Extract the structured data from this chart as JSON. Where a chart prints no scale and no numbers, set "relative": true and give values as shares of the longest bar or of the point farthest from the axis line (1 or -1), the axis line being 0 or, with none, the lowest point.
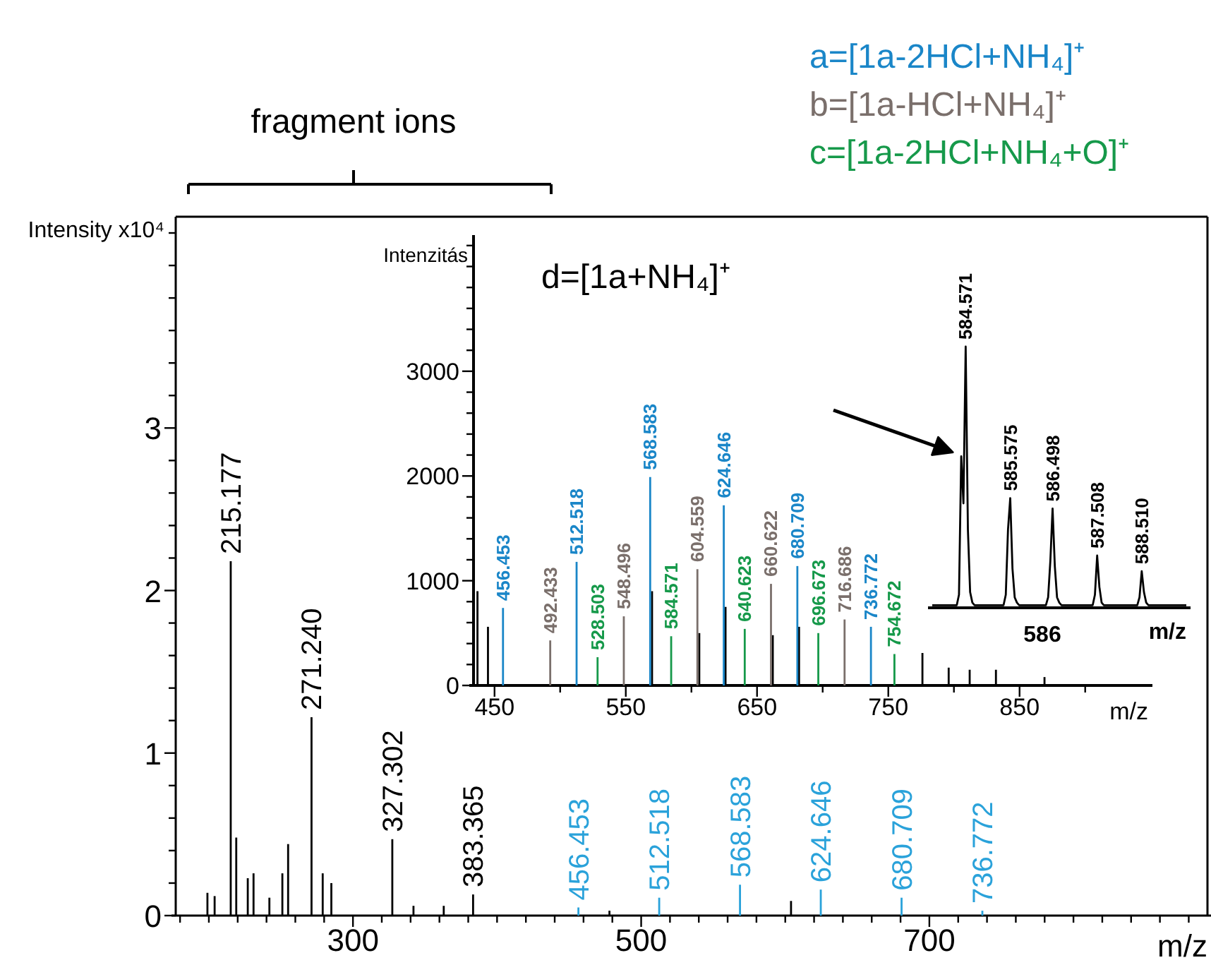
{
  "chart_data": [
    {
      "type": "bar",
      "xlabel": "m/z",
      "ylabel": "Intensity x10⁴",
      "annotations": [
        "fragment ions",
        {
          "text": "215.177",
          "x": 215.177,
          "y": 2.18
        },
        {
          "text": "271.240",
          "x": 271.24,
          "y": 1.22
        },
        {
          "text": "327.302",
          "x": 327.302,
          "y": 0.47
        },
        {
          "text": "383.365",
          "x": 383.365,
          "y": 0.13
        },
        {
          "text": "456.453",
          "x": 456.453,
          "y": 0.05
        },
        {
          "text": "512.518",
          "x": 512.518,
          "y": 0.11
        },
        {
          "text": "568.583",
          "x": 568.583,
          "y": 0.19
        },
        {
          "text": "624.646",
          "x": 624.646,
          "y": 0.16
        },
        {
          "text": "680.709",
          "x": 680.709,
          "y": 0.11
        },
        {
          "text": "736.772",
          "x": 736.772,
          "y": 0.03
        }
      ],
      "xlim": [
        177,
        893
      ],
      "ylim": [
        0,
        4.3
      ],
      "xticks": [
        {
          "value": 180,
          "label": null
        },
        {
          "value": 200,
          "label": null
        },
        {
          "value": 220,
          "label": null
        },
        {
          "value": 240,
          "label": null
        },
        {
          "value": 260,
          "label": null
        },
        {
          "value": 280,
          "label": null
        },
        300,
        {
          "value": 320,
          "label": null
        },
        {
          "value": 340,
          "label": null
        },
        {
          "value": 360,
          "label": null
        },
        {
          "value": 380,
          "label": null
        },
        {
          "value": 400,
          "label": null
        },
        {
          "value": 420,
          "label": null
        },
        {
          "value": 440,
          "label": null
        },
        {
          "value": 460,
          "label": null
        },
        {
          "value": 480,
          "label": null
        },
        500,
        {
          "value": 520,
          "label": null
        },
        {
          "value": 540,
          "label": null
        },
        {
          "value": 560,
          "label": null
        },
        {
          "value": 580,
          "label": null
        },
        {
          "value": 600,
          "label": null
        },
        {
          "value": 620,
          "label": null
        },
        {
          "value": 640,
          "label": null
        },
        {
          "value": 660,
          "label": null
        },
        {
          "value": 680,
          "label": null
        },
        700,
        {
          "value": 720,
          "label": null
        },
        {
          "value": 740,
          "label": null
        },
        {
          "value": 760,
          "label": null
        },
        {
          "value": 780,
          "label": null
        },
        {
          "value": 800,
          "label": null
        },
        {
          "value": 820,
          "label": null
        },
        {
          "value": 840,
          "label": null
        },
        {
          "value": 860,
          "label": null
        },
        {
          "value": 880,
          "label": null
        }
      ],
      "yticks": [
        0,
        {
          "value": 0.2,
          "label": null
        },
        {
          "value": 0.4,
          "label": null
        },
        {
          "value": 0.6,
          "label": null
        },
        {
          "value": 0.8,
          "label": null
        },
        1,
        {
          "value": 1.2,
          "label": null
        },
        {
          "value": 1.4,
          "label": null
        },
        {
          "value": 1.6,
          "label": null
        },
        {
          "value": 1.8,
          "label": null
        },
        2,
        {
          "value": 2.2,
          "label": null
        },
        {
          "value": 2.4,
          "label": null
        },
        {
          "value": 2.6,
          "label": null
        },
        {
          "value": 2.8,
          "label": null
        },
        3,
        {
          "value": 3.2,
          "label": null
        },
        {
          "value": 3.4,
          "label": null
        },
        {
          "value": 3.6,
          "label": null
        },
        {
          "value": 3.8,
          "label": null
        },
        {
          "value": 4.0,
          "label": null
        },
        {
          "value": 4.2,
          "label": null
        }
      ],
      "series": [
        {
          "color": "#000000",
          "x": [
            199,
            204,
            219,
            227,
            231,
            242,
            251,
            255,
            279,
            285,
            342,
            363,
            478,
            604
          ],
          "values": [
            0.14,
            0.12,
            0.48,
            0.23,
            0.26,
            0.11,
            0.26,
            0.44,
            0.26,
            0.2,
            0.06,
            0.06,
            0.03,
            0.09
          ]
        },
        {
          "color": "#000000",
          "x": [
            215.177,
            271.24,
            327.302,
            383.365
          ],
          "values": [
            2.18,
            1.22,
            0.47,
            0.13
          ]
        },
        {
          "color": "#2aa2da",
          "x": [
            456.453,
            512.518,
            568.583,
            624.646,
            680.709,
            736.772
          ],
          "values": [
            0.05,
            0.11,
            0.19,
            0.16,
            0.11,
            0.03
          ]
        }
      ]
    },
    {
      "type": "bar",
      "xlabel": "m/z",
      "ylabel": "Intenzitás",
      "legend": "top right",
      "annotations": [
        "d=[1a+NH₄]⁺",
        {
          "text": "456.453",
          "x": 456.453,
          "y": 740
        },
        {
          "text": "512.518",
          "x": 512.518,
          "y": 1180
        },
        {
          "text": "568.583",
          "x": 568.583,
          "y": 1990
        },
        {
          "text": "624.646",
          "x": 624.646,
          "y": 1720
        },
        {
          "text": "680.709",
          "x": 680.709,
          "y": 1140
        },
        {
          "text": "736.772",
          "x": 736.772,
          "y": 560
        },
        {
          "text": "492.433",
          "x": 492.433,
          "y": 430
        },
        {
          "text": "548.496",
          "x": 548.496,
          "y": 660
        },
        {
          "text": "604.559",
          "x": 604.559,
          "y": 1110
        },
        {
          "text": "660.622",
          "x": 660.622,
          "y": 970
        },
        {
          "text": "716.686",
          "x": 716.686,
          "y": 630
        },
        {
          "text": "528.503",
          "x": 528.503,
          "y": 270
        },
        {
          "text": "584.571",
          "x": 584.571,
          "y": 470
        },
        {
          "text": "640.623",
          "x": 640.623,
          "y": 540
        },
        {
          "text": "696.673",
          "x": 696.673,
          "y": 500
        },
        {
          "text": "754.672",
          "x": 754.672,
          "y": 300
        }
      ],
      "xlim": [
        434,
        948
      ],
      "ylim": [
        0,
        4300
      ],
      "xticks": [
        450,
        {
          "value": 500,
          "label": null
        },
        550,
        {
          "value": 600,
          "label": null
        },
        650,
        {
          "value": 700,
          "label": null
        },
        750,
        {
          "value": 800,
          "label": null
        },
        850,
        {
          "value": 900,
          "label": null
        }
      ],
      "yticks": [
        0,
        {
          "value": 200,
          "label": null
        },
        {
          "value": 400,
          "label": null
        },
        {
          "value": 600,
          "label": null
        },
        {
          "value": 800,
          "label": null
        },
        1000,
        {
          "value": 1200,
          "label": null
        },
        {
          "value": 1400,
          "label": null
        },
        {
          "value": 1600,
          "label": null
        },
        {
          "value": 1800,
          "label": null
        },
        2000,
        {
          "value": 2200,
          "label": null
        },
        {
          "value": 2400,
          "label": null
        },
        {
          "value": 2600,
          "label": null
        },
        {
          "value": 2800,
          "label": null
        },
        3000,
        {
          "value": 3200,
          "label": null
        },
        {
          "value": 3400,
          "label": null
        },
        {
          "value": 3600,
          "label": null
        },
        {
          "value": 3800,
          "label": null
        },
        {
          "value": 4000,
          "label": null
        },
        {
          "value": 4200,
          "label": null
        }
      ],
      "series": [
        {
          "color": "#000000",
          "x": [
            437,
            445,
            570,
            606,
            626,
            662,
            682,
            776,
            796,
            812,
            832,
            869
          ],
          "values": [
            900,
            560,
            900,
            500,
            750,
            480,
            560,
            310,
            170,
            150,
            150,
            80
          ]
        },
        {
          "name": "a=[1a-2HCl+NH₄]⁺",
          "color": "#1a86c8",
          "x": [
            456.453,
            512.518,
            568.583,
            624.646,
            680.709,
            736.772
          ],
          "values": [
            740,
            1180,
            1990,
            1720,
            1140,
            560
          ]
        },
        {
          "name": "b=[1a-HCl+NH₄]⁺",
          "color": "#7a6f6b",
          "x": [
            492.433,
            548.496,
            604.559,
            660.622,
            716.686
          ],
          "values": [
            430,
            660,
            1110,
            970,
            630
          ]
        },
        {
          "name": "c=[1a-2HCl+NH₄+O]⁺",
          "color": "#16994a",
          "x": [
            528.503,
            584.571,
            640.623,
            696.673,
            754.672
          ],
          "values": [
            270,
            470,
            540,
            500,
            300
          ]
        }
      ]
    },
    {
      "type": "line",
      "relative": true,
      "xlabel": "m/z",
      "categories": [
        null,
        null,
        null,
        null,
        null,
        null,
        null,
        null,
        null,
        null,
        null,
        null,
        null,
        null,
        null,
        null,
        null,
        null,
        null,
        null,
        null,
        null,
        null,
        null,
        null,
        null,
        null,
        null,
        null,
        null,
        null,
        null,
        null,
        null,
        null,
        null,
        null,
        null,
        null,
        null,
        null,
        null,
        null,
        null,
        null,
        null,
        null,
        null,
        null,
        null,
        null,
        null,
        null,
        null,
        null,
        null,
        null,
        null,
        null,
        null,
        null,
        null,
        null,
        null,
        null,
        null,
        null,
        null,
        null,
        null,
        null,
        null,
        null,
        null,
        null,
        null,
        null,
        null,
        null,
        null,
        null,
        null,
        null,
        null,
        null,
        null,
        null,
        null,
        null,
        null,
        null,
        null,
        null,
        null,
        null,
        null,
        null,
        null,
        null,
        null,
        null,
        null,
        null,
        null,
        null,
        null,
        null,
        null,
        null,
        null,
        null,
        null,
        null,
        null,
        null
      ],
      "annotations": [
        "586",
        {
          "text": "584.571",
          "y": 1.0
        },
        {
          "text": "585.575",
          "y": 0.42
        },
        {
          "text": "586.498",
          "y": 0.38
        },
        {
          "text": "587.508",
          "y": 0.2
        },
        {
          "text": "588.510",
          "y": 0.14
        }
      ],
      "series": [
        {
          "color": "#000000",
          "values": [
            0.01,
            0.01,
            0.01,
            0.01,
            0.01,
            0.01,
            0.01,
            0.01,
            0.01,
            0.01,
            0.01,
            0.01,
            0.05,
            0.58,
            0.4,
            1.0,
            0.3,
            0.06,
            0.02,
            0.01,
            0.01,
            0.01,
            0.01,
            0.01,
            0.01,
            0.01,
            0.01,
            0.01,
            0.01,
            0.01,
            0.01,
            0.01,
            0.01,
            0.05,
            0.3,
            0.42,
            0.15,
            0.04,
            0.02,
            0.01,
            0.01,
            0.01,
            0.01,
            0.01,
            0.01,
            0.01,
            0.01,
            0.01,
            0.01,
            0.01,
            0.01,
            0.01,
            0.04,
            0.18,
            0.38,
            0.16,
            0.04,
            0.02,
            0.01,
            0.01,
            0.01,
            0.01,
            0.01,
            0.01,
            0.01,
            0.01,
            0.01,
            0.01,
            0.01,
            0.01,
            0.01,
            0.01,
            0.01,
            0.05,
            0.2,
            0.08,
            0.02,
            0.01,
            0.01,
            0.01,
            0.01,
            0.01,
            0.01,
            0.01,
            0.01,
            0.01,
            0.01,
            0.01,
            0.01,
            0.01,
            0.01,
            0.01,
            0.01,
            0.04,
            0.14,
            0.06,
            0.02,
            0.01,
            0.01,
            0.01,
            0.01,
            0.01,
            0.01,
            0.01,
            0.01,
            0.01,
            0.01,
            0.01,
            0.01,
            0.01,
            0.01,
            0.01,
            0.01,
            0.01,
            0.01
          ]
        }
      ]
    }
  ]
}
